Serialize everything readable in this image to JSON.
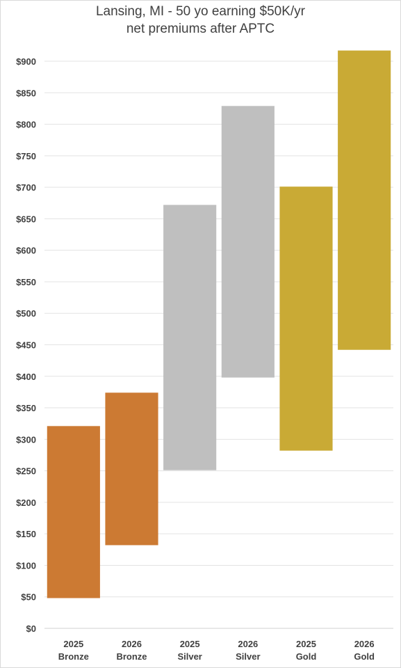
{
  "chart_data": {
    "type": "bar",
    "title": [
      "Lansing, MI - 50 yo earning $50K/yr",
      "net premiums after APTC"
    ],
    "ylim": [
      0,
      900
    ],
    "ytick_step": 50,
    "ytick_format": "$",
    "grid": true,
    "categories": [
      [
        "2025",
        "Bronze"
      ],
      [
        "2026",
        "Bronze"
      ],
      [
        "2025",
        "Silver"
      ],
      [
        "2026",
        "Silver"
      ],
      [
        "2025",
        "Gold"
      ],
      [
        "2026",
        "Gold"
      ]
    ],
    "ranges": [
      {
        "low": 48,
        "high": 321,
        "color": "#cc7a33"
      },
      {
        "low": 132,
        "high": 374,
        "color": "#cc7a33"
      },
      {
        "low": 251,
        "high": 672,
        "color": "#bfbfbf"
      },
      {
        "low": 398,
        "high": 829,
        "color": "#bfbfbf"
      },
      {
        "low": 282,
        "high": 701,
        "color": "#c9aa35"
      },
      {
        "low": 442,
        "high": 917,
        "color": "#c9aa35"
      }
    ]
  }
}
